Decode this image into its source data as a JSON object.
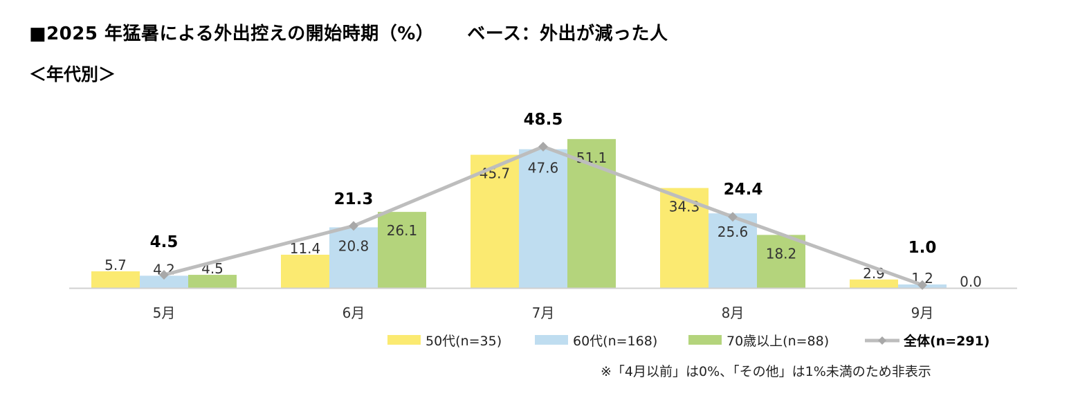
{
  "title": "■2025 年猛暑による外出控えの開始時期（%）",
  "base_label": "ベース：外出が減った人",
  "subtitle": "＜年代別＞",
  "note": "※「4月以前」は0%、「その他」は1%未満のため非表示",
  "chart_data": {
    "type": "bar",
    "title": "2025 年猛暑による外出控えの開始時期（%）",
    "categories": [
      "5月",
      "6月",
      "7月",
      "8月",
      "9月"
    ],
    "ylim": [
      0,
      55
    ],
    "series": [
      {
        "name": "50代(n=35)",
        "type": "bar",
        "color": "#FBEA71",
        "values": [
          5.7,
          11.4,
          45.7,
          34.3,
          2.9
        ],
        "labels": [
          "5.7",
          "11.4",
          "45.7",
          "34.3",
          "2.9"
        ]
      },
      {
        "name": "60代(n=168)",
        "type": "bar",
        "color": "#BFDDF0",
        "values": [
          4.2,
          20.8,
          47.6,
          25.6,
          1.2
        ],
        "labels": [
          "4.2",
          "20.8",
          "47.6",
          "25.6",
          "1.2"
        ]
      },
      {
        "name": "70歳以上(n=88)",
        "type": "bar",
        "color": "#B4D47C",
        "values": [
          4.5,
          26.1,
          51.1,
          18.2,
          0.0
        ],
        "labels": [
          "4.5",
          "26.1",
          "51.1",
          "18.2",
          "0.0"
        ]
      },
      {
        "name": "全体(n=291)",
        "type": "line",
        "color": "#BDBDBD",
        "values": [
          4.5,
          21.3,
          48.5,
          24.4,
          1.0
        ],
        "labels": [
          "4.5",
          "21.3",
          "48.5",
          "24.4",
          "1.0"
        ]
      }
    ]
  }
}
